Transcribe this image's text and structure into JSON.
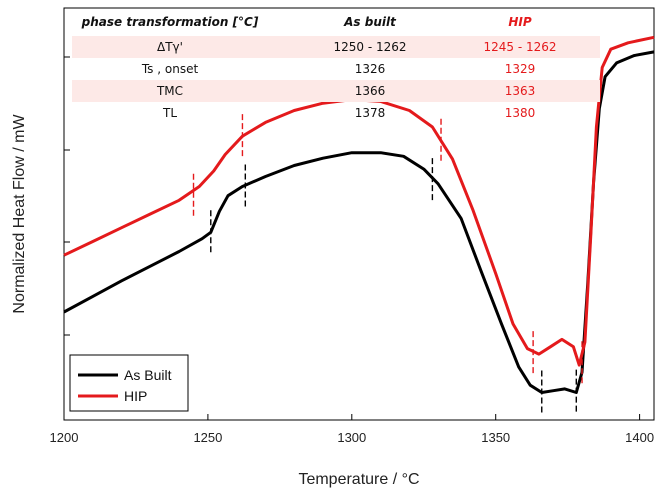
{
  "chart_data": {
    "type": "line",
    "xlabel": "Temperature / °C",
    "ylabel": "Normalized Heat Flow / mW",
    "xlim": [
      1200,
      1405
    ],
    "x_ticks": [
      "1200",
      "1250",
      "1300",
      "1350",
      "1400"
    ],
    "grid": false,
    "legend_position": "bottom-left",
    "series": [
      {
        "name": "As Built",
        "color": "#000000",
        "points": [
          [
            1200,
            1.18
          ],
          [
            1210,
            1.35
          ],
          [
            1220,
            1.52
          ],
          [
            1230,
            1.68
          ],
          [
            1240,
            1.84
          ],
          [
            1248,
            1.98
          ],
          [
            1251,
            2.05
          ],
          [
            1254,
            2.28
          ],
          [
            1257,
            2.45
          ],
          [
            1262,
            2.55
          ],
          [
            1270,
            2.66
          ],
          [
            1280,
            2.78
          ],
          [
            1290,
            2.86
          ],
          [
            1300,
            2.92
          ],
          [
            1310,
            2.92
          ],
          [
            1318,
            2.88
          ],
          [
            1325,
            2.74
          ],
          [
            1330,
            2.58
          ],
          [
            1338,
            2.2
          ],
          [
            1345,
            1.62
          ],
          [
            1352,
            1.05
          ],
          [
            1358,
            0.58
          ],
          [
            1362,
            0.38
          ],
          [
            1366,
            0.3
          ],
          [
            1370,
            0.32
          ],
          [
            1374,
            0.34
          ],
          [
            1378,
            0.3
          ],
          [
            1380,
            0.52
          ],
          [
            1382,
            1.5
          ],
          [
            1384,
            2.6
          ],
          [
            1386,
            3.4
          ],
          [
            1388,
            3.75
          ],
          [
            1392,
            3.9
          ],
          [
            1398,
            3.98
          ],
          [
            1405,
            4.02
          ]
        ],
        "markers": [
          {
            "x": 1251,
            "y": 2.05
          },
          {
            "x": 1263,
            "y": 2.55
          },
          {
            "x": 1328,
            "y": 2.62
          },
          {
            "x": 1366,
            "y": 0.3
          },
          {
            "x": 1378,
            "y": 0.31
          }
        ]
      },
      {
        "name": "HIP",
        "color": "#e41a1c",
        "points": [
          [
            1200,
            1.8
          ],
          [
            1210,
            1.95
          ],
          [
            1220,
            2.1
          ],
          [
            1230,
            2.25
          ],
          [
            1240,
            2.4
          ],
          [
            1247,
            2.55
          ],
          [
            1252,
            2.72
          ],
          [
            1256,
            2.9
          ],
          [
            1262,
            3.1
          ],
          [
            1270,
            3.25
          ],
          [
            1280,
            3.38
          ],
          [
            1290,
            3.46
          ],
          [
            1300,
            3.5
          ],
          [
            1310,
            3.48
          ],
          [
            1320,
            3.38
          ],
          [
            1328,
            3.2
          ],
          [
            1335,
            2.85
          ],
          [
            1342,
            2.3
          ],
          [
            1350,
            1.6
          ],
          [
            1356,
            1.05
          ],
          [
            1361,
            0.78
          ],
          [
            1365,
            0.72
          ],
          [
            1369,
            0.8
          ],
          [
            1373,
            0.88
          ],
          [
            1377,
            0.8
          ],
          [
            1379,
            0.6
          ],
          [
            1381,
            0.85
          ],
          [
            1383,
            2.0
          ],
          [
            1385,
            3.2
          ],
          [
            1387,
            3.85
          ],
          [
            1390,
            4.05
          ],
          [
            1396,
            4.12
          ],
          [
            1405,
            4.18
          ]
        ],
        "markers": [
          {
            "x": 1245,
            "y": 2.45
          },
          {
            "x": 1262,
            "y": 3.1
          },
          {
            "x": 1331,
            "y": 3.05
          },
          {
            "x": 1363,
            "y": 0.73
          },
          {
            "x": 1380,
            "y": 0.62
          }
        ]
      }
    ],
    "table": {
      "headers": [
        "phase transformation [°C]",
        "As built",
        "HIP"
      ],
      "rows": [
        {
          "label": "ΔTγ'",
          "as_built": "1250 - 1262",
          "hip": "1245 - 1262"
        },
        {
          "label": "Ts , onset",
          "as_built": "1326",
          "hip": "1329"
        },
        {
          "label": "TMC",
          "as_built": "1366",
          "hip": "1363"
        },
        {
          "label": "TL",
          "as_built": "1378",
          "hip": "1380"
        }
      ]
    }
  }
}
